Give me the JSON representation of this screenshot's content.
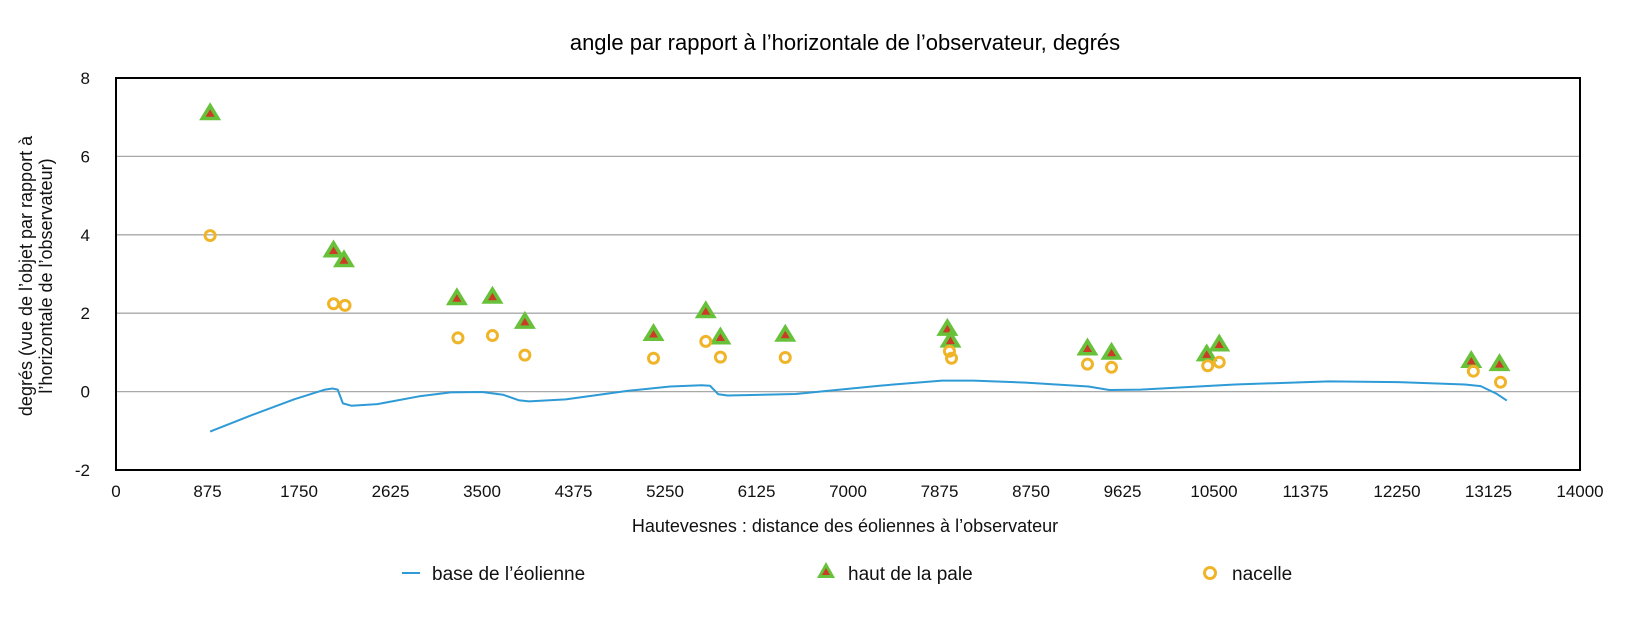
{
  "chart_data": {
    "type": "scatter",
    "title": "angle par rapport à l’horizontale de l’observateur, degrés",
    "xlabel": "Hautevesnes : distance des éoliennes à l’observateur",
    "ylabel_line1": "degrés (vue de l’objet par rapport à",
    "ylabel_line2": "l’horizontale de l’observateur)",
    "xlim": [
      0,
      14000
    ],
    "ylim": [
      -2,
      8
    ],
    "x_ticks": [
      0,
      875,
      1750,
      2625,
      3500,
      4375,
      5250,
      6125,
      7000,
      7875,
      8750,
      9625,
      10500,
      11375,
      12250,
      13125,
      14000
    ],
    "y_ticks": [
      -2,
      0,
      2,
      4,
      6,
      8
    ],
    "grid": "horizontal",
    "legend_position": "bottom",
    "series": [
      {
        "name": "base de l’éolienne",
        "kind": "line",
        "color": "#2e9bd6",
        "points": [
          [
            900,
            -1.02
          ],
          [
            1300,
            -0.6
          ],
          [
            1700,
            -0.2
          ],
          [
            2000,
            0.05
          ],
          [
            2070,
            0.08
          ],
          [
            2120,
            0.05
          ],
          [
            2170,
            -0.3
          ],
          [
            2250,
            -0.36
          ],
          [
            2500,
            -0.32
          ],
          [
            2900,
            -0.12
          ],
          [
            3200,
            -0.02
          ],
          [
            3500,
            -0.01
          ],
          [
            3700,
            -0.08
          ],
          [
            3850,
            -0.22
          ],
          [
            3950,
            -0.25
          ],
          [
            4300,
            -0.2
          ],
          [
            4900,
            0.02
          ],
          [
            5300,
            0.13
          ],
          [
            5600,
            0.16
          ],
          [
            5680,
            0.15
          ],
          [
            5760,
            -0.07
          ],
          [
            5850,
            -0.1
          ],
          [
            6500,
            -0.06
          ],
          [
            7300,
            0.15
          ],
          [
            7900,
            0.28
          ],
          [
            8200,
            0.28
          ],
          [
            8700,
            0.23
          ],
          [
            9300,
            0.13
          ],
          [
            9500,
            0.04
          ],
          [
            9800,
            0.05
          ],
          [
            10700,
            0.18
          ],
          [
            11600,
            0.26
          ],
          [
            12300,
            0.24
          ],
          [
            12900,
            0.18
          ],
          [
            13050,
            0.14
          ],
          [
            13200,
            -0.05
          ],
          [
            13300,
            -0.23
          ]
        ]
      },
      {
        "name": "haut de la pale",
        "kind": "triangle",
        "fill": "#67c23a",
        "inner": "#cc3b26",
        "points": [
          [
            900,
            7.1
          ],
          [
            2080,
            3.6
          ],
          [
            2180,
            3.35
          ],
          [
            3260,
            2.38
          ],
          [
            3600,
            2.42
          ],
          [
            3910,
            1.78
          ],
          [
            5140,
            1.47
          ],
          [
            5640,
            2.05
          ],
          [
            5780,
            1.38
          ],
          [
            6400,
            1.45
          ],
          [
            7950,
            1.6
          ],
          [
            7980,
            1.3
          ],
          [
            9290,
            1.1
          ],
          [
            9520,
            0.99
          ],
          [
            10430,
            0.95
          ],
          [
            10550,
            1.2
          ],
          [
            12960,
            0.78
          ],
          [
            13230,
            0.7
          ]
        ]
      },
      {
        "name": "nacelle",
        "kind": "circle",
        "color": "#f0b429",
        "points": [
          [
            900,
            3.98
          ],
          [
            2080,
            2.24
          ],
          [
            2190,
            2.2
          ],
          [
            3270,
            1.37
          ],
          [
            3600,
            1.43
          ],
          [
            3910,
            0.93
          ],
          [
            5140,
            0.85
          ],
          [
            5640,
            1.28
          ],
          [
            5780,
            0.88
          ],
          [
            6400,
            0.87
          ],
          [
            7970,
            1.03
          ],
          [
            7990,
            0.85
          ],
          [
            9290,
            0.7
          ],
          [
            9520,
            0.62
          ],
          [
            10440,
            0.66
          ],
          [
            10550,
            0.75
          ],
          [
            12980,
            0.52
          ],
          [
            13240,
            0.24
          ]
        ]
      }
    ]
  }
}
